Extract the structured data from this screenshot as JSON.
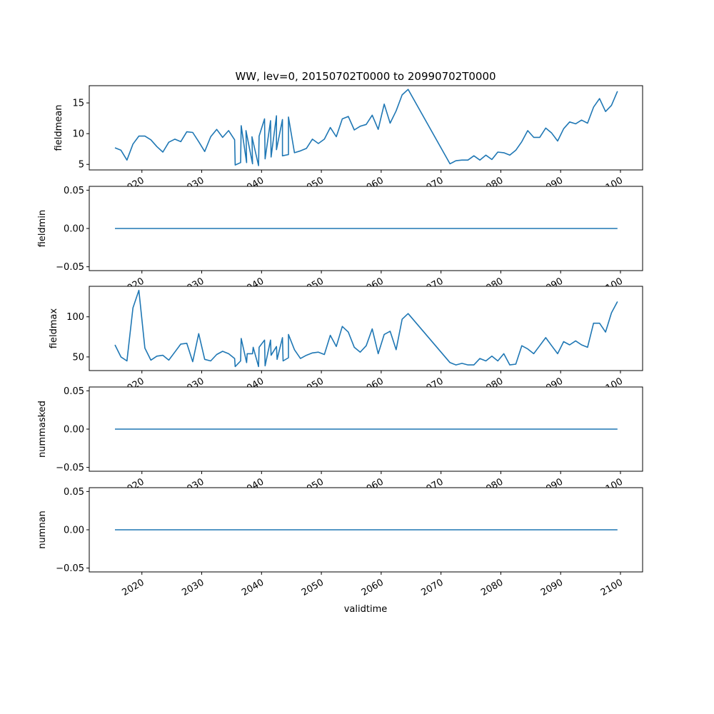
{
  "title": "WW, lev=0, 20150702T0000 to 20990702T0000",
  "xlabel": "validtime",
  "line_color": "#1f77b4",
  "chart_data": [
    {
      "type": "line",
      "ylabel": "fieldmean",
      "xlim": [
        2011.2,
        2103.7
      ],
      "ylim": [
        4.1,
        17.8
      ],
      "yticks": [
        5,
        10,
        15
      ],
      "ytick_labels": [
        "5",
        "10",
        "15"
      ],
      "xticks": [
        2020,
        2030,
        2040,
        2050,
        2060,
        2070,
        2080,
        2090,
        2100
      ],
      "xtick_labels": [
        "2020",
        "2030",
        "2040",
        "2050",
        "2060",
        "2070",
        "2080",
        "2090",
        "2100"
      ],
      "x": [
        2015.5,
        2016.5,
        2017.5,
        2018.5,
        2019.5,
        2020.5,
        2021.5,
        2022.5,
        2023.5,
        2024.5,
        2025.5,
        2026.5,
        2027.5,
        2028.5,
        2029.5,
        2030.5,
        2031.5,
        2032.5,
        2033.5,
        2034.5,
        2035.5,
        2035.6,
        2036.5,
        2036.6,
        2037.5,
        2037.4,
        2038.5,
        2038.4,
        2039.5,
        2039.6,
        2040.5,
        2040.6,
        2041.5,
        2041.6,
        2042.5,
        2042.5,
        2043.5,
        2043.5,
        2044.5,
        2044.5,
        2045.5,
        2046.5,
        2047.5,
        2048.5,
        2049.5,
        2050.5,
        2051.5,
        2052.5,
        2053.5,
        2054.5,
        2055.5,
        2056.5,
        2057.5,
        2058.5,
        2059.5,
        2060.5,
        2061.5,
        2062.5,
        2063.5,
        2064.5,
        2071.5,
        2072.5,
        2073.5,
        2074.5,
        2075.5,
        2076.5,
        2077.5,
        2078.5,
        2079.5,
        2080.5,
        2081.5,
        2082.5,
        2083.5,
        2084.5,
        2085.5,
        2086.5,
        2087.5,
        2088.5,
        2089.5,
        2090.5,
        2091.5,
        2092.5,
        2093.5,
        2094.5,
        2095.5,
        2096.5,
        2097.5,
        2098.5,
        2099.5
      ],
      "y": [
        7.7,
        7.3,
        5.7,
        8.3,
        9.6,
        9.6,
        9.0,
        7.9,
        7.0,
        8.6,
        9.1,
        8.7,
        10.3,
        10.2,
        8.7,
        7.1,
        9.5,
        10.7,
        9.4,
        10.5,
        9.0,
        4.9,
        5.3,
        11.3,
        5.3,
        10.5,
        5.1,
        9.5,
        4.8,
        9.6,
        12.4,
        5.9,
        12.1,
        6.2,
        12.9,
        7.4,
        12.3,
        6.4,
        6.6,
        12.7,
        6.9,
        7.2,
        7.6,
        9.1,
        8.4,
        9.1,
        11.0,
        9.5,
        12.4,
        12.8,
        10.6,
        11.2,
        11.5,
        13.0,
        10.7,
        14.8,
        11.7,
        13.7,
        16.3,
        17.2,
        5.1,
        5.6,
        5.7,
        5.7,
        6.4,
        5.7,
        6.5,
        5.8,
        7.0,
        6.9,
        6.5,
        7.3,
        8.7,
        10.5,
        9.4,
        9.4,
        10.9,
        10.1,
        8.8,
        10.8,
        11.9,
        11.6,
        12.2,
        11.7,
        14.3,
        15.7,
        13.6,
        14.6,
        16.9
      ]
    },
    {
      "type": "line",
      "ylabel": "fieldmin",
      "xlim": [
        2011.2,
        2103.7
      ],
      "ylim": [
        -0.055,
        0.055
      ],
      "yticks": [
        -0.05,
        0,
        0.05
      ],
      "ytick_labels": [
        "−0.05",
        "0.00",
        "0.05"
      ],
      "xticks": [
        2020,
        2030,
        2040,
        2050,
        2060,
        2070,
        2080,
        2090,
        2100
      ],
      "xtick_labels": [
        "2020",
        "2030",
        "2040",
        "2050",
        "2060",
        "2070",
        "2080",
        "2090",
        "2100"
      ],
      "x": [
        2015.5,
        2099.5
      ],
      "y": [
        0,
        0
      ]
    },
    {
      "type": "line",
      "ylabel": "fieldmax",
      "xlim": [
        2011.2,
        2103.7
      ],
      "ylim": [
        33,
        138
      ],
      "yticks": [
        50,
        100
      ],
      "ytick_labels": [
        "50",
        "100"
      ],
      "xticks": [
        2020,
        2030,
        2040,
        2050,
        2060,
        2070,
        2080,
        2090,
        2100
      ],
      "xtick_labels": [
        "2020",
        "2030",
        "2040",
        "2050",
        "2060",
        "2070",
        "2080",
        "2090",
        "2100"
      ],
      "x": [
        2015.5,
        2016.5,
        2017.5,
        2018.5,
        2019.5,
        2020.5,
        2021.5,
        2022.5,
        2023.5,
        2024.5,
        2025.5,
        2026.5,
        2027.5,
        2028.5,
        2029.5,
        2030.5,
        2031.5,
        2032.5,
        2033.5,
        2034.5,
        2035.5,
        2035.6,
        2036.5,
        2036.6,
        2037.5,
        2037.6,
        2038.5,
        2038.6,
        2039.5,
        2039.6,
        2040.5,
        2040.6,
        2041.5,
        2041.6,
        2042.5,
        2042.6,
        2043.5,
        2043.6,
        2044.5,
        2044.5,
        2045.5,
        2046.5,
        2047.5,
        2048.5,
        2049.5,
        2050.5,
        2051.5,
        2052.5,
        2053.5,
        2054.5,
        2055.5,
        2056.5,
        2057.5,
        2058.5,
        2059.5,
        2060.5,
        2061.5,
        2062.5,
        2063.5,
        2064.5,
        2071.5,
        2072.5,
        2073.5,
        2074.5,
        2075.5,
        2076.5,
        2077.5,
        2078.5,
        2079.5,
        2080.5,
        2081.5,
        2082.5,
        2083.5,
        2084.5,
        2085.5,
        2086.5,
        2087.5,
        2088.5,
        2089.5,
        2090.5,
        2091.5,
        2092.5,
        2093.5,
        2094.5,
        2095.5,
        2096.5,
        2097.5,
        2098.5,
        2099.5
      ],
      "y": [
        65,
        50,
        45,
        111,
        133,
        61,
        46,
        51,
        52,
        46,
        56,
        66,
        67,
        44,
        79,
        47,
        45,
        53,
        57,
        54,
        48,
        38,
        45,
        73,
        43,
        54,
        54,
        62,
        38,
        62,
        71,
        39,
        71,
        52,
        63,
        47,
        74,
        45,
        49,
        78,
        59,
        48,
        52,
        55,
        56,
        53,
        77,
        63,
        88,
        81,
        62,
        56,
        64,
        85,
        54,
        78,
        82,
        59,
        97,
        104,
        43,
        40,
        42,
        40,
        40,
        48,
        45,
        51,
        45,
        54,
        40,
        41,
        64,
        60,
        54,
        64,
        74,
        64,
        54,
        69,
        65,
        70,
        65,
        62,
        92,
        92,
        81,
        105,
        119
      ]
    },
    {
      "type": "line",
      "ylabel": "nummasked",
      "xlim": [
        2011.2,
        2103.7
      ],
      "ylim": [
        -0.055,
        0.055
      ],
      "yticks": [
        -0.05,
        0,
        0.05
      ],
      "ytick_labels": [
        "−0.05",
        "0.00",
        "0.05"
      ],
      "xticks": [
        2020,
        2030,
        2040,
        2050,
        2060,
        2070,
        2080,
        2090,
        2100
      ],
      "xtick_labels": [
        "2020",
        "2030",
        "2040",
        "2050",
        "2060",
        "2070",
        "2080",
        "2090",
        "2100"
      ],
      "x": [
        2015.5,
        2099.5
      ],
      "y": [
        0,
        0
      ]
    },
    {
      "type": "line",
      "ylabel": "numnan",
      "xlim": [
        2011.2,
        2103.7
      ],
      "ylim": [
        -0.055,
        0.055
      ],
      "yticks": [
        -0.05,
        0,
        0.05
      ],
      "ytick_labels": [
        "−0.05",
        "0.00",
        "0.05"
      ],
      "xticks": [
        2020,
        2030,
        2040,
        2050,
        2060,
        2070,
        2080,
        2090,
        2100
      ],
      "xtick_labels": [
        "2020",
        "2030",
        "2040",
        "2050",
        "2060",
        "2070",
        "2080",
        "2090",
        "2100"
      ],
      "x": [
        2015.5,
        2099.5
      ],
      "y": [
        0,
        0
      ]
    }
  ]
}
